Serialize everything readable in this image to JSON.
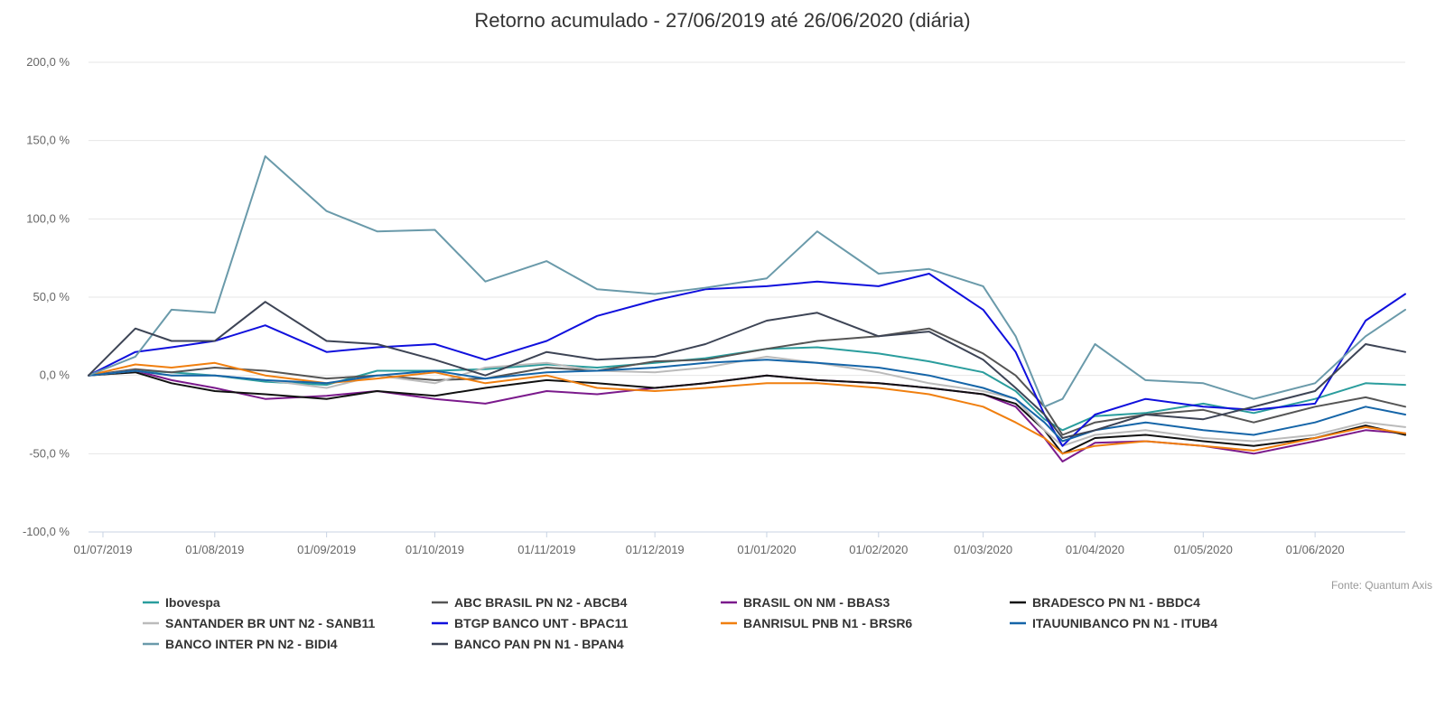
{
  "chart_data": {
    "type": "line",
    "title": "Retorno acumulado - 27/06/2019 até 26/06/2020 (diária)",
    "source": "Fonte: Quantum Axis",
    "ylim": [
      -100,
      200
    ],
    "yticks": [
      {
        "value": 200,
        "label": "200,0 %"
      },
      {
        "value": 150,
        "label": "150,0 %"
      },
      {
        "value": 100,
        "label": "100,0 %"
      },
      {
        "value": 50,
        "label": "50,0 %"
      },
      {
        "value": 0,
        "label": "0,0 %"
      },
      {
        "value": -50,
        "label": "-50,0 %"
      },
      {
        "value": -100,
        "label": "-100,0 %"
      }
    ],
    "xlim": [
      "2019-06-27",
      "2020-06-26"
    ],
    "xticks": [
      {
        "date": "2019-07-01",
        "label": "01/07/2019"
      },
      {
        "date": "2019-08-01",
        "label": "01/08/2019"
      },
      {
        "date": "2019-09-01",
        "label": "01/09/2019"
      },
      {
        "date": "2019-10-01",
        "label": "01/10/2019"
      },
      {
        "date": "2019-11-01",
        "label": "01/11/2019"
      },
      {
        "date": "2019-12-01",
        "label": "01/12/2019"
      },
      {
        "date": "2020-01-01",
        "label": "01/01/2020"
      },
      {
        "date": "2020-02-01",
        "label": "01/02/2020"
      },
      {
        "date": "2020-03-01",
        "label": "01/03/2020"
      },
      {
        "date": "2020-04-01",
        "label": "01/04/2020"
      },
      {
        "date": "2020-05-01",
        "label": "01/05/2020"
      },
      {
        "date": "2020-06-01",
        "label": "01/06/2020"
      }
    ],
    "grid": true,
    "legend_position": "bottom",
    "x": [
      "2019-06-27",
      "2019-07-10",
      "2019-07-20",
      "2019-08-01",
      "2019-08-15",
      "2019-09-01",
      "2019-09-15",
      "2019-10-01",
      "2019-10-15",
      "2019-11-01",
      "2019-11-15",
      "2019-12-01",
      "2019-12-15",
      "2020-01-01",
      "2020-01-15",
      "2020-02-01",
      "2020-02-15",
      "2020-03-01",
      "2020-03-10",
      "2020-03-18",
      "2020-03-23",
      "2020-04-01",
      "2020-04-15",
      "2020-05-01",
      "2020-05-15",
      "2020-06-01",
      "2020-06-15",
      "2020-06-26"
    ],
    "series": [
      {
        "name": "Ibovespa",
        "color": "#2a9d9d",
        "values": [
          0,
          3,
          2,
          0,
          -4,
          -6,
          3,
          3,
          4,
          7,
          5,
          8,
          11,
          17,
          18,
          14,
          9,
          2,
          -10,
          -28,
          -35,
          -26,
          -24,
          -18,
          -24,
          -15,
          -5,
          -6
        ]
      },
      {
        "name": "ABC BRASIL PN N2 - ABCB4",
        "color": "#555555",
        "values": [
          0,
          4,
          2,
          5,
          3,
          -2,
          0,
          -3,
          -2,
          5,
          3,
          9,
          10,
          17,
          22,
          25,
          30,
          14,
          0,
          -20,
          -38,
          -30,
          -25,
          -22,
          -30,
          -20,
          -14,
          -20
        ]
      },
      {
        "name": "BRASIL ON NM - BBAS3",
        "color": "#7b1a8c",
        "values": [
          0,
          3,
          -3,
          -8,
          -15,
          -13,
          -10,
          -15,
          -18,
          -10,
          -12,
          -8,
          -5,
          0,
          -3,
          -5,
          -8,
          -12,
          -20,
          -40,
          -55,
          -43,
          -42,
          -45,
          -50,
          -42,
          -35,
          -37
        ]
      },
      {
        "name": "BRADESCO PN N1 - BBDC4",
        "color": "#111111",
        "values": [
          0,
          2,
          -5,
          -10,
          -12,
          -15,
          -10,
          -13,
          -8,
          -3,
          -5,
          -8,
          -5,
          0,
          -3,
          -5,
          -8,
          -12,
          -18,
          -35,
          -50,
          -40,
          -38,
          -42,
          -45,
          -40,
          -32,
          -38
        ]
      },
      {
        "name": "SANTANDER BR UNT N2 - SANB11",
        "color": "#bbbbbb",
        "values": [
          0,
          3,
          0,
          0,
          -3,
          -8,
          0,
          -5,
          5,
          8,
          3,
          2,
          5,
          12,
          8,
          2,
          -5,
          -10,
          -15,
          -35,
          -45,
          -38,
          -35,
          -40,
          -42,
          -38,
          -30,
          -33
        ]
      },
      {
        "name": "BTGP BANCO UNT - BPAC11",
        "color": "#1010dd",
        "values": [
          0,
          15,
          18,
          22,
          32,
          15,
          18,
          20,
          10,
          22,
          38,
          48,
          55,
          57,
          60,
          57,
          65,
          42,
          15,
          -25,
          -45,
          -25,
          -15,
          -20,
          -22,
          -18,
          35,
          52
        ]
      },
      {
        "name": "BANRISUL PNB N1 - BRSR6",
        "color": "#f07f0f",
        "values": [
          0,
          7,
          5,
          8,
          0,
          -5,
          -2,
          2,
          -5,
          0,
          -8,
          -10,
          -8,
          -5,
          -5,
          -8,
          -12,
          -20,
          -30,
          -40,
          -50,
          -45,
          -42,
          -45,
          -48,
          -40,
          -33,
          -37
        ]
      },
      {
        "name": "ITAUUNIBANCO PN N1 - ITUB4",
        "color": "#1565a8",
        "values": [
          0,
          3,
          0,
          0,
          -3,
          -5,
          0,
          3,
          -2,
          2,
          3,
          5,
          8,
          10,
          8,
          5,
          0,
          -8,
          -15,
          -30,
          -42,
          -35,
          -30,
          -35,
          -38,
          -30,
          -20,
          -25
        ]
      },
      {
        "name": "BANCO INTER PN N2 - BIDI4",
        "color": "#6a9aaa",
        "values": [
          0,
          12,
          42,
          40,
          140,
          105,
          92,
          93,
          60,
          73,
          55,
          52,
          56,
          62,
          92,
          65,
          68,
          57,
          25,
          -20,
          -15,
          20,
          -3,
          -5,
          -15,
          -5,
          25,
          42
        ]
      },
      {
        "name": "BANCO PAN PN N1 - BPAN4",
        "color": "#3d4455",
        "values": [
          0,
          30,
          22,
          22,
          47,
          22,
          20,
          10,
          0,
          15,
          10,
          12,
          20,
          35,
          40,
          25,
          28,
          10,
          -8,
          -25,
          -40,
          -35,
          -25,
          -28,
          -20,
          -10,
          20,
          15
        ]
      }
    ]
  }
}
